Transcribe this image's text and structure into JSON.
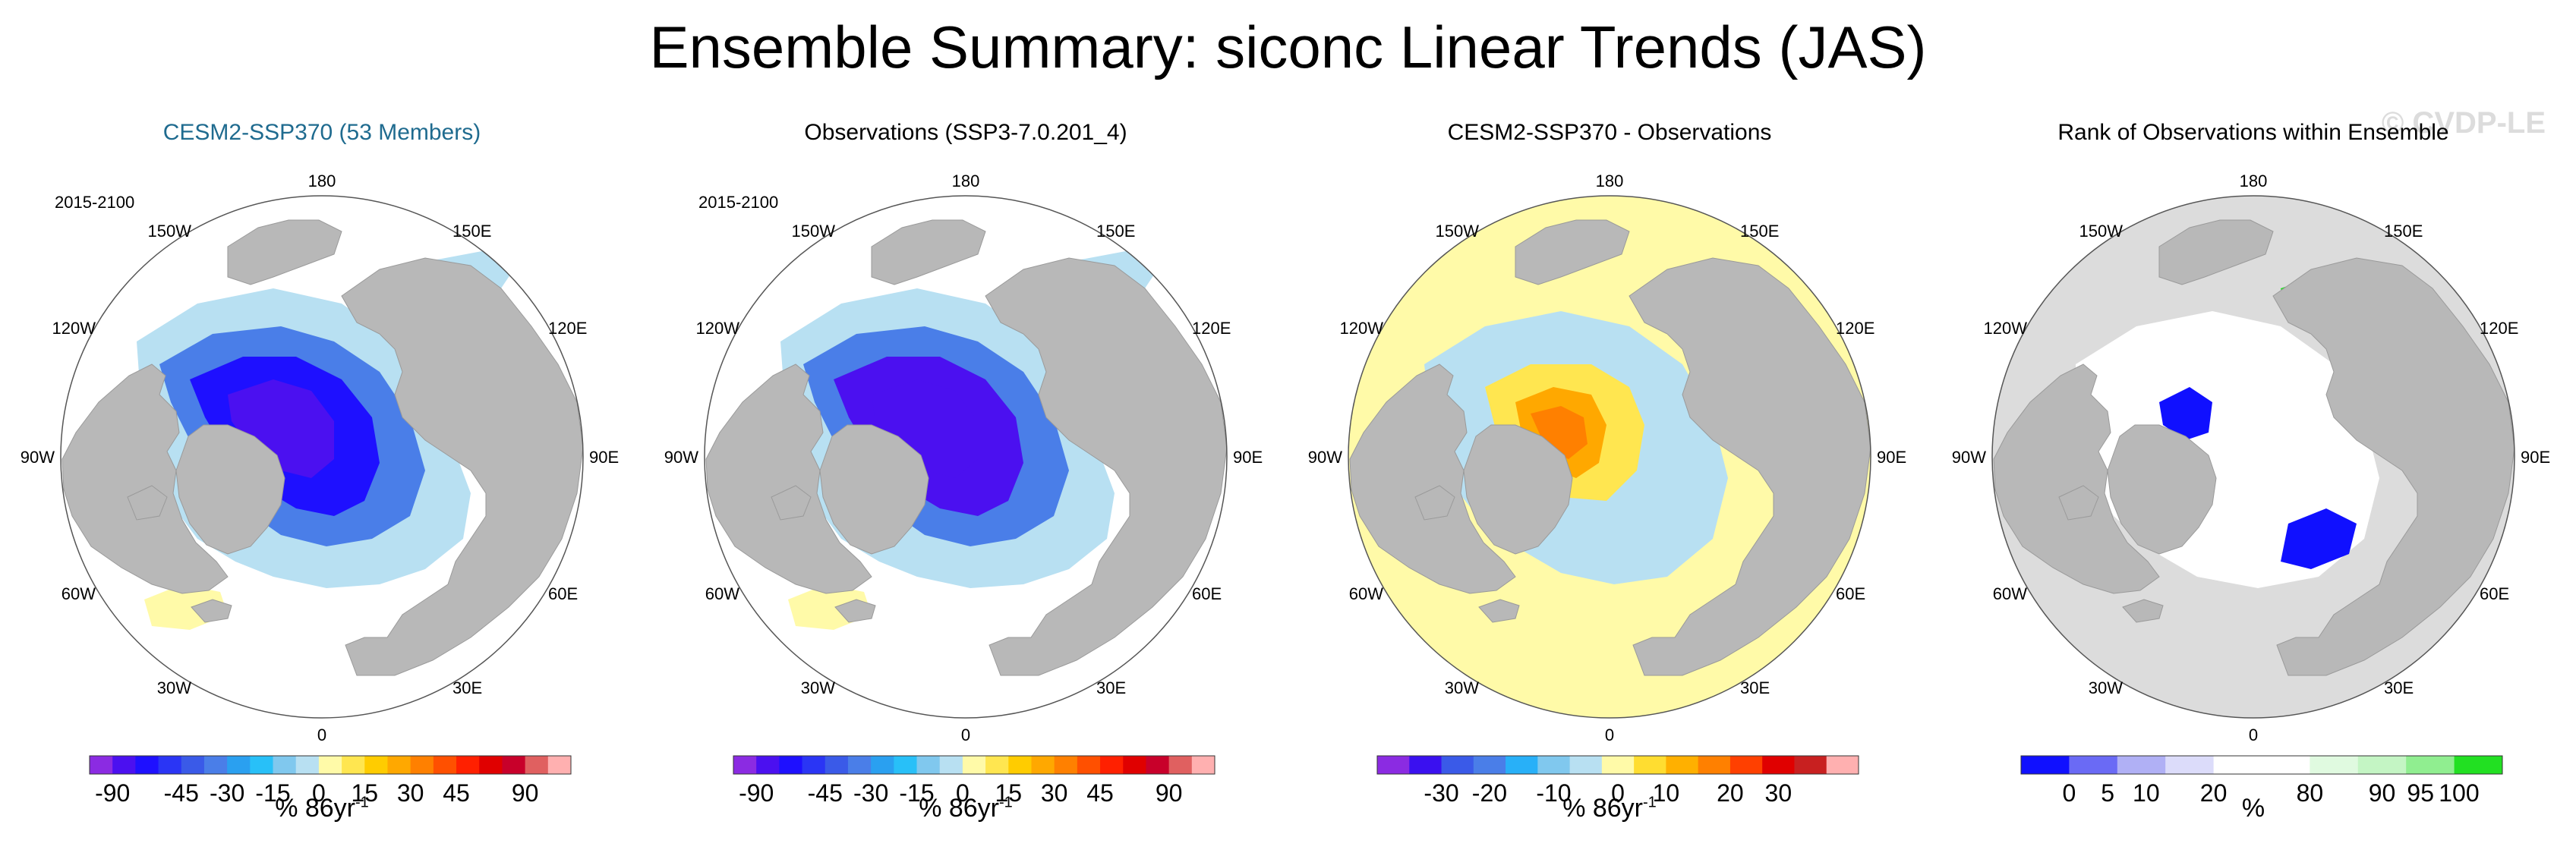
{
  "header": {
    "title": "Ensemble Summary: siconc Linear Trends (JAS)",
    "watermark": "© CVDP-LE"
  },
  "colors": {
    "land": "#b8b8b8",
    "ocean_bg": "#ffffff",
    "trend_scale": [
      "#8b2be2",
      "#4b10f0",
      "#1e10ff",
      "#2a35f5",
      "#3a5ae8",
      "#4a7ee8",
      "#2aa0f0",
      "#28c0f8",
      "#80c8ee",
      "#b8e0f2",
      "#fffaa8",
      "#ffe650",
      "#ffcc00",
      "#ffa800",
      "#ff8000",
      "#ff5000",
      "#ff2000",
      "#e00000",
      "#c8002a",
      "#e06060",
      "#ffb0b0"
    ],
    "diff_scale": [
      "#8b2be2",
      "#3a10f0",
      "#3a5ae8",
      "#4a7ee8",
      "#28b0f8",
      "#80c8ee",
      "#b8e0f2",
      "#fffaa8",
      "#ffdd30",
      "#ffb000",
      "#ff8000",
      "#ff4000",
      "#e00000",
      "#c82020",
      "#ffb0b0"
    ],
    "rank_scale": [
      "#1010ff",
      "#6a6af5",
      "#b0b0f5",
      "#dcdcfa",
      "#ffffff",
      "#ffffff",
      "#e0fae0",
      "#c4f5c4",
      "#90ee90",
      "#22e022"
    ]
  },
  "map_labels": {
    "top": "180",
    "bottom": "0",
    "left_mid": "90W",
    "right_mid": "90E",
    "ul1": "150W",
    "ul2": "120W",
    "ur1": "150E",
    "ur2": "120E",
    "ll1": "60W",
    "ll2": "30W",
    "lr1": "60E",
    "lr2": "30E"
  },
  "panels": [
    {
      "title": "CESM2-SSP370 (53 Members)",
      "period": "2015-2100",
      "cbar_label": "% 86yr",
      "cbar_exp": "-1"
    },
    {
      "title": "Observations (SSP3-7.0.201_4)",
      "period": "2015-2100",
      "cbar_label": "% 86yr",
      "cbar_exp": "-1"
    },
    {
      "title": "CESM2-SSP370 - Observations",
      "period": "",
      "cbar_label": "% 86yr",
      "cbar_exp": "-1"
    },
    {
      "title": "Rank of Observations within Ensemble",
      "period": "",
      "cbar_label": "%",
      "cbar_exp": ""
    }
  ],
  "chart_data": [
    {
      "type": "heatmap",
      "title": "CESM2-SSP370 (53 Members)",
      "projection": "north polar stereographic",
      "units": "% 86yr-1",
      "colorbar_levels": [
        -95,
        -90,
        -75,
        -60,
        -45,
        -40,
        -30,
        -25,
        -15,
        -5,
        0,
        5,
        15,
        25,
        30,
        40,
        45,
        60,
        75,
        90,
        95
      ],
      "colorbar_tick_labels": [
        "-90",
        "-45",
        "-30",
        "-15",
        "0",
        "15",
        "30",
        "45",
        "90"
      ],
      "colorbar_tick_values": [
        -90,
        -45,
        -30,
        -15,
        0,
        15,
        30,
        45,
        90
      ]
    },
    {
      "type": "heatmap",
      "title": "Observations (SSP3-7.0.201_4)",
      "projection": "north polar stereographic",
      "units": "% 86yr-1",
      "colorbar_levels": [
        -95,
        -90,
        -75,
        -60,
        -45,
        -40,
        -30,
        -25,
        -15,
        -5,
        0,
        5,
        15,
        25,
        30,
        40,
        45,
        60,
        75,
        90,
        95
      ],
      "colorbar_tick_labels": [
        "-90",
        "-45",
        "-30",
        "-15",
        "0",
        "15",
        "30",
        "45",
        "90"
      ],
      "colorbar_tick_values": [
        -90,
        -45,
        -30,
        -15,
        0,
        15,
        30,
        45,
        90
      ]
    },
    {
      "type": "heatmap",
      "title": "CESM2-SSP370 - Observations",
      "projection": "north polar stereographic",
      "units": "% 86yr-1",
      "colorbar_tick_labels": [
        "-30",
        "-20",
        "-10",
        "0",
        "10",
        "20",
        "30"
      ],
      "colorbar_tick_values": [
        -30,
        -20,
        -10,
        0,
        10,
        20,
        30
      ]
    },
    {
      "type": "heatmap",
      "title": "Rank of Observations within Ensemble",
      "projection": "north polar stereographic",
      "units": "%",
      "colorbar_tick_labels": [
        "0",
        "5",
        "10",
        "20",
        "80",
        "90",
        "95",
        "100"
      ],
      "colorbar_tick_values": [
        0,
        5,
        10,
        20,
        80,
        90,
        95,
        100
      ]
    }
  ]
}
